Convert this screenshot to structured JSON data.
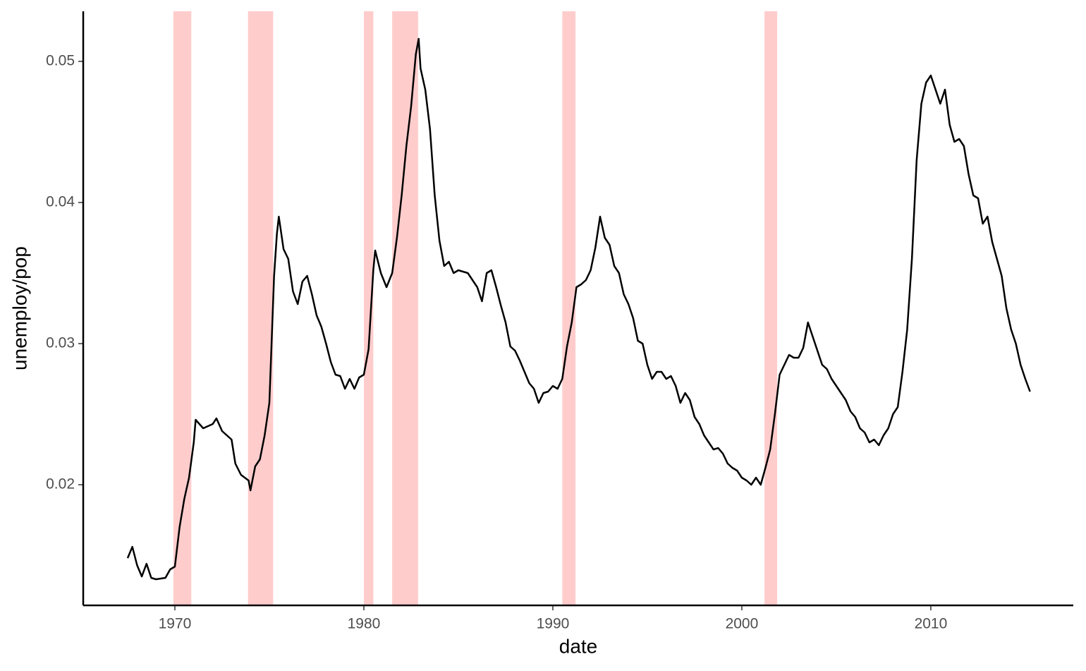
{
  "chart_data": {
    "type": "line",
    "x_label": "date",
    "y_label": "unemploy/pop",
    "xlim": [
      1965.15,
      2017.54
    ],
    "ylim": [
      0.01145,
      0.05355
    ],
    "xticks": [
      1970,
      1980,
      1990,
      2000,
      2010
    ],
    "yticks": [
      0.02,
      0.03,
      0.04,
      0.05
    ],
    "recession_color": "#ffcccc",
    "recessions": [
      {
        "start": 1969.92,
        "end": 1970.87
      },
      {
        "start": 1973.87,
        "end": 1975.2
      },
      {
        "start": 1980.0,
        "end": 1980.5
      },
      {
        "start": 1981.5,
        "end": 1982.87
      },
      {
        "start": 1990.5,
        "end": 1991.2
      },
      {
        "start": 2001.2,
        "end": 2001.87
      }
    ],
    "series": [
      {
        "color": "#000000",
        "x": [
          1967.5,
          1967.75,
          1968.0,
          1968.25,
          1968.5,
          1968.75,
          1969.0,
          1969.5,
          1969.75,
          1970.0,
          1970.25,
          1970.5,
          1970.75,
          1971.0,
          1971.1,
          1971.5,
          1972.0,
          1972.2,
          1972.5,
          1973.0,
          1973.2,
          1973.5,
          1973.9,
          1974.0,
          1974.25,
          1974.5,
          1974.75,
          1975.0,
          1975.25,
          1975.4,
          1975.5,
          1975.75,
          1976.0,
          1976.25,
          1976.5,
          1976.75,
          1977.0,
          1977.25,
          1977.5,
          1977.75,
          1978.0,
          1978.25,
          1978.5,
          1978.75,
          1979.0,
          1979.25,
          1979.5,
          1979.75,
          1980.0,
          1980.25,
          1980.5,
          1980.6,
          1980.9,
          1981.2,
          1981.5,
          1981.75,
          1982.0,
          1982.25,
          1982.5,
          1982.75,
          1982.9,
          1983.0,
          1983.25,
          1983.5,
          1983.75,
          1984.0,
          1984.25,
          1984.5,
          1984.75,
          1985.0,
          1985.5,
          1986.0,
          1986.25,
          1986.5,
          1986.75,
          1987.0,
          1987.25,
          1987.5,
          1987.75,
          1988.0,
          1988.25,
          1988.5,
          1988.75,
          1989.0,
          1989.25,
          1989.5,
          1989.75,
          1990.0,
          1990.25,
          1990.5,
          1990.75,
          1991.0,
          1991.25,
          1991.5,
          1991.75,
          1992.0,
          1992.25,
          1992.5,
          1992.75,
          1993.0,
          1993.25,
          1993.5,
          1993.75,
          1994.0,
          1994.25,
          1994.5,
          1994.75,
          1995.0,
          1995.25,
          1995.5,
          1995.75,
          1996.0,
          1996.25,
          1996.5,
          1996.75,
          1997.0,
          1997.25,
          1997.5,
          1997.75,
          1998.0,
          1998.25,
          1998.5,
          1998.75,
          1999.0,
          1999.25,
          1999.5,
          1999.75,
          2000.0,
          2000.25,
          2000.5,
          2000.75,
          2001.0,
          2001.25,
          2001.5,
          2001.75,
          2002.0,
          2002.25,
          2002.5,
          2002.75,
          2003.0,
          2003.25,
          2003.5,
          2003.75,
          2004.0,
          2004.25,
          2004.5,
          2004.75,
          2005.0,
          2005.25,
          2005.5,
          2005.75,
          2006.0,
          2006.25,
          2006.5,
          2006.75,
          2007.0,
          2007.25,
          2007.5,
          2007.75,
          2008.0,
          2008.25,
          2008.5,
          2008.75,
          2009.0,
          2009.25,
          2009.5,
          2009.75,
          2010.0,
          2010.25,
          2010.5,
          2010.75,
          2011.0,
          2011.25,
          2011.5,
          2011.75,
          2012.0,
          2012.25,
          2012.5,
          2012.75,
          2013.0,
          2013.25,
          2013.5,
          2013.75,
          2014.0,
          2014.25,
          2014.5,
          2014.75,
          2015.0,
          2015.25
        ],
        "values": [
          0.0148,
          0.0156,
          0.0143,
          0.0135,
          0.0144,
          0.0134,
          0.0133,
          0.0134,
          0.014,
          0.0142,
          0.017,
          0.019,
          0.0205,
          0.023,
          0.0246,
          0.024,
          0.0243,
          0.0247,
          0.0238,
          0.0232,
          0.0215,
          0.0207,
          0.0203,
          0.0196,
          0.0213,
          0.0218,
          0.0235,
          0.0258,
          0.0348,
          0.0378,
          0.039,
          0.0367,
          0.036,
          0.0337,
          0.0328,
          0.0344,
          0.0348,
          0.0335,
          0.032,
          0.0312,
          0.03,
          0.0287,
          0.0278,
          0.0277,
          0.0268,
          0.0275,
          0.0268,
          0.0276,
          0.0278,
          0.0296,
          0.0352,
          0.0366,
          0.035,
          0.034,
          0.035,
          0.0375,
          0.0405,
          0.044,
          0.0468,
          0.0505,
          0.0516,
          0.0495,
          0.048,
          0.0452,
          0.0405,
          0.0373,
          0.0355,
          0.0358,
          0.035,
          0.0352,
          0.035,
          0.034,
          0.033,
          0.035,
          0.0352,
          0.034,
          0.0327,
          0.0315,
          0.0298,
          0.0295,
          0.0288,
          0.028,
          0.0272,
          0.0268,
          0.0258,
          0.0265,
          0.0266,
          0.027,
          0.0268,
          0.0275,
          0.0298,
          0.0315,
          0.034,
          0.0342,
          0.0345,
          0.0352,
          0.0368,
          0.039,
          0.0375,
          0.037,
          0.0355,
          0.035,
          0.0335,
          0.0328,
          0.0318,
          0.0302,
          0.03,
          0.0285,
          0.0275,
          0.028,
          0.028,
          0.0275,
          0.0277,
          0.027,
          0.0258,
          0.0265,
          0.026,
          0.0248,
          0.0243,
          0.0235,
          0.023,
          0.0225,
          0.0226,
          0.0222,
          0.0215,
          0.0212,
          0.021,
          0.0205,
          0.0203,
          0.02,
          0.0205,
          0.02,
          0.0212,
          0.0225,
          0.025,
          0.0278,
          0.0285,
          0.0292,
          0.029,
          0.029,
          0.0297,
          0.0315,
          0.0305,
          0.0295,
          0.0285,
          0.0282,
          0.0275,
          0.027,
          0.0265,
          0.026,
          0.0252,
          0.0248,
          0.024,
          0.0237,
          0.023,
          0.0232,
          0.0228,
          0.0235,
          0.024,
          0.025,
          0.0255,
          0.028,
          0.031,
          0.036,
          0.043,
          0.047,
          0.0485,
          0.049,
          0.048,
          0.047,
          0.048,
          0.0455,
          0.0443,
          0.0445,
          0.044,
          0.042,
          0.0405,
          0.0403,
          0.0385,
          0.039,
          0.0372,
          0.036,
          0.0348,
          0.0325,
          0.031,
          0.03,
          0.0285,
          0.0275,
          0.0266
        ]
      }
    ]
  }
}
